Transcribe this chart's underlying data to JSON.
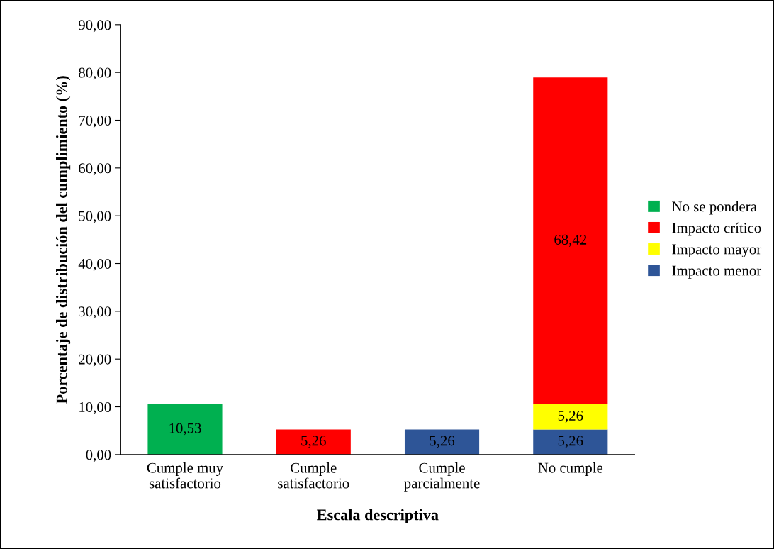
{
  "chart_data": {
    "type": "bar",
    "stacked": true,
    "xlabel": "Escala descriptiva",
    "ylabel": "Porcentaje de distribución del cumplimiento (%)",
    "categories": [
      "Cumple muy\nsatisfactorio",
      "Cumple\nsatisfactorio",
      "Cumple\nparcialmente",
      "No cumple"
    ],
    "series": [
      {
        "name": "Impacto menor",
        "color": "#2e5597",
        "values": [
          null,
          null,
          5.26,
          5.26
        ],
        "value_labels": [
          null,
          null,
          "5,26",
          "5,26"
        ]
      },
      {
        "name": "Impacto mayor",
        "color": "#ffff00",
        "values": [
          null,
          null,
          null,
          5.26
        ],
        "value_labels": [
          null,
          null,
          null,
          "5,26"
        ]
      },
      {
        "name": "Impacto crítico",
        "color": "#ff0000",
        "values": [
          null,
          5.26,
          null,
          68.42
        ],
        "value_labels": [
          null,
          "5,26",
          null,
          "68,42"
        ]
      },
      {
        "name": "No se pondera",
        "color": "#00b050",
        "values": [
          10.53,
          null,
          null,
          null
        ],
        "value_labels": [
          "10,53",
          null,
          null,
          null
        ]
      }
    ],
    "ylim": [
      0,
      90
    ],
    "yticks": [
      {
        "value": 0,
        "label": "0,00"
      },
      {
        "value": 10,
        "label": "10,00"
      },
      {
        "value": 20,
        "label": "20,00"
      },
      {
        "value": 30,
        "label": "30,00"
      },
      {
        "value": 40,
        "label": "40,00"
      },
      {
        "value": 50,
        "label": "50,00"
      },
      {
        "value": 60,
        "label": "60,00"
      },
      {
        "value": 70,
        "label": "70,00"
      },
      {
        "value": 80,
        "label": "80,00"
      },
      {
        "value": 90,
        "label": "90,00"
      }
    ],
    "legend": "right",
    "grid": false
  }
}
